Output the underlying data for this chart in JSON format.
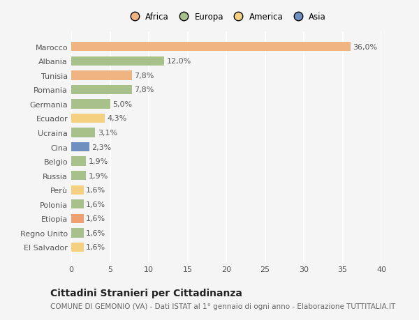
{
  "countries": [
    "Marocco",
    "Albania",
    "Tunisia",
    "Romania",
    "Germania",
    "Ecuador",
    "Ucraina",
    "Cina",
    "Belgio",
    "Russia",
    "Perù",
    "Polonia",
    "Etiopia",
    "Regno Unito",
    "El Salvador"
  ],
  "values": [
    36.0,
    12.0,
    7.8,
    7.8,
    5.0,
    4.3,
    3.1,
    2.3,
    1.9,
    1.9,
    1.6,
    1.6,
    1.6,
    1.6,
    1.6
  ],
  "labels": [
    "36,0%",
    "12,0%",
    "7,8%",
    "7,8%",
    "5,0%",
    "4,3%",
    "3,1%",
    "2,3%",
    "1,9%",
    "1,9%",
    "1,6%",
    "1,6%",
    "1,6%",
    "1,6%",
    "1,6%"
  ],
  "colors": [
    "#F0B482",
    "#A8C08A",
    "#F0B482",
    "#A8C08A",
    "#A8C08A",
    "#F5D080",
    "#A8C08A",
    "#6F8FC0",
    "#A8C08A",
    "#A8C08A",
    "#F5D080",
    "#A8C08A",
    "#F0A070",
    "#A8C08A",
    "#F5D080"
  ],
  "legend_labels": [
    "Africa",
    "Europa",
    "America",
    "Asia"
  ],
  "legend_colors": [
    "#F0B482",
    "#A8C08A",
    "#F5D080",
    "#6F8FC0"
  ],
  "title": "Cittadini Stranieri per Cittadinanza",
  "subtitle": "COMUNE DI GEMONIO (VA) - Dati ISTAT al 1° gennaio di ogni anno - Elaborazione TUTTITALIA.IT",
  "xlim": [
    0,
    40
  ],
  "xticks": [
    0,
    5,
    10,
    15,
    20,
    25,
    30,
    35,
    40
  ],
  "background_color": "#f5f5f5",
  "grid_color": "#ffffff",
  "bar_height": 0.65,
  "title_fontsize": 10,
  "subtitle_fontsize": 7.5,
  "tick_fontsize": 8,
  "label_fontsize": 8
}
